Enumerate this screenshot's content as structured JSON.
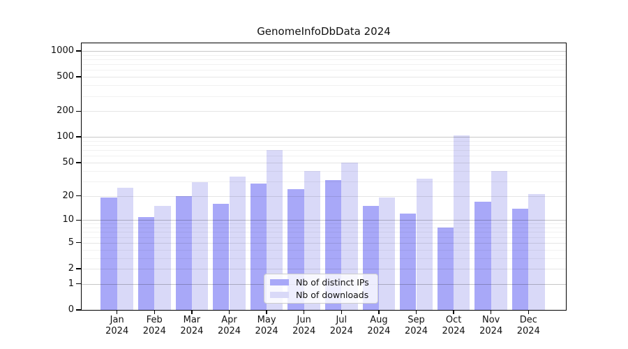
{
  "window": {
    "title": "GenomeInfoDbData 2024"
  },
  "chart_data": {
    "type": "bar",
    "title": "GenomeInfoDbData 2024",
    "categories": [
      "Jan 2024",
      "Feb 2024",
      "Mar 2024",
      "Apr 2024",
      "May 2024",
      "Jun 2024",
      "Jul 2024",
      "Aug 2024",
      "Sep 2024",
      "Oct 2024",
      "Nov 2024",
      "Dec 2024"
    ],
    "series": [
      {
        "name": "Nb of distinct IPs",
        "color": "#a8a8f8",
        "values": [
          19,
          11,
          20,
          16,
          28,
          24,
          31,
          15,
          12,
          8,
          17,
          14
        ]
      },
      {
        "name": "Nb of downloads",
        "color": "#d9d9f8",
        "values": [
          25,
          15,
          29,
          34,
          70,
          40,
          50,
          19,
          32,
          105,
          40,
          21
        ]
      }
    ],
    "xlabel": "",
    "ylabel": "",
    "y_scale": "log1p",
    "y_ticks": [
      0,
      1,
      2,
      5,
      10,
      20,
      50,
      100,
      200,
      500,
      1000
    ],
    "ylim": [
      0,
      1000
    ],
    "grid": true,
    "legend_position": "bottom-center"
  },
  "colors": {
    "grid_decade": "rgba(0,0,0,0.22)",
    "grid_major": "rgba(0,0,0,0.10)",
    "grid_minor": "rgba(0,0,0,0.055)"
  }
}
